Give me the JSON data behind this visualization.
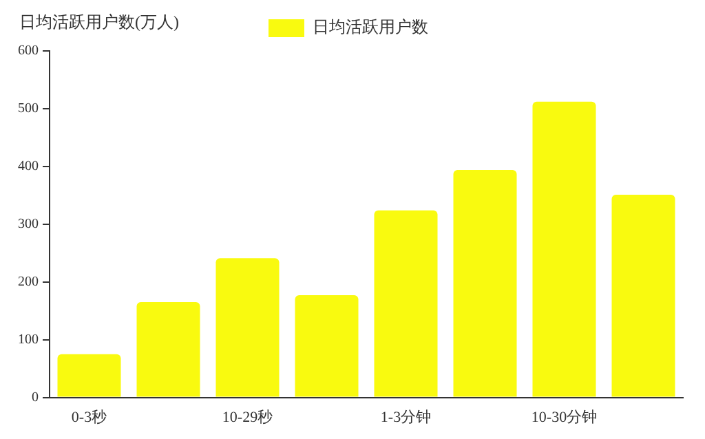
{
  "chart_data": {
    "type": "bar",
    "ylabel": "日均活跃用户数(万人)",
    "categories": [
      "0-3秒",
      null,
      "10-29秒",
      null,
      "1-3分钟",
      null,
      "10-30分钟",
      null
    ],
    "series": [
      {
        "name": "日均活跃用户数",
        "color": "#f9fa0f",
        "values": [
          75,
          165,
          241,
          177,
          324,
          394,
          512,
          351
        ]
      }
    ],
    "ylim": [
      0,
      600
    ],
    "yticks": [
      0,
      100,
      200,
      300,
      400,
      500,
      600
    ],
    "grid": false,
    "legend": "top"
  }
}
